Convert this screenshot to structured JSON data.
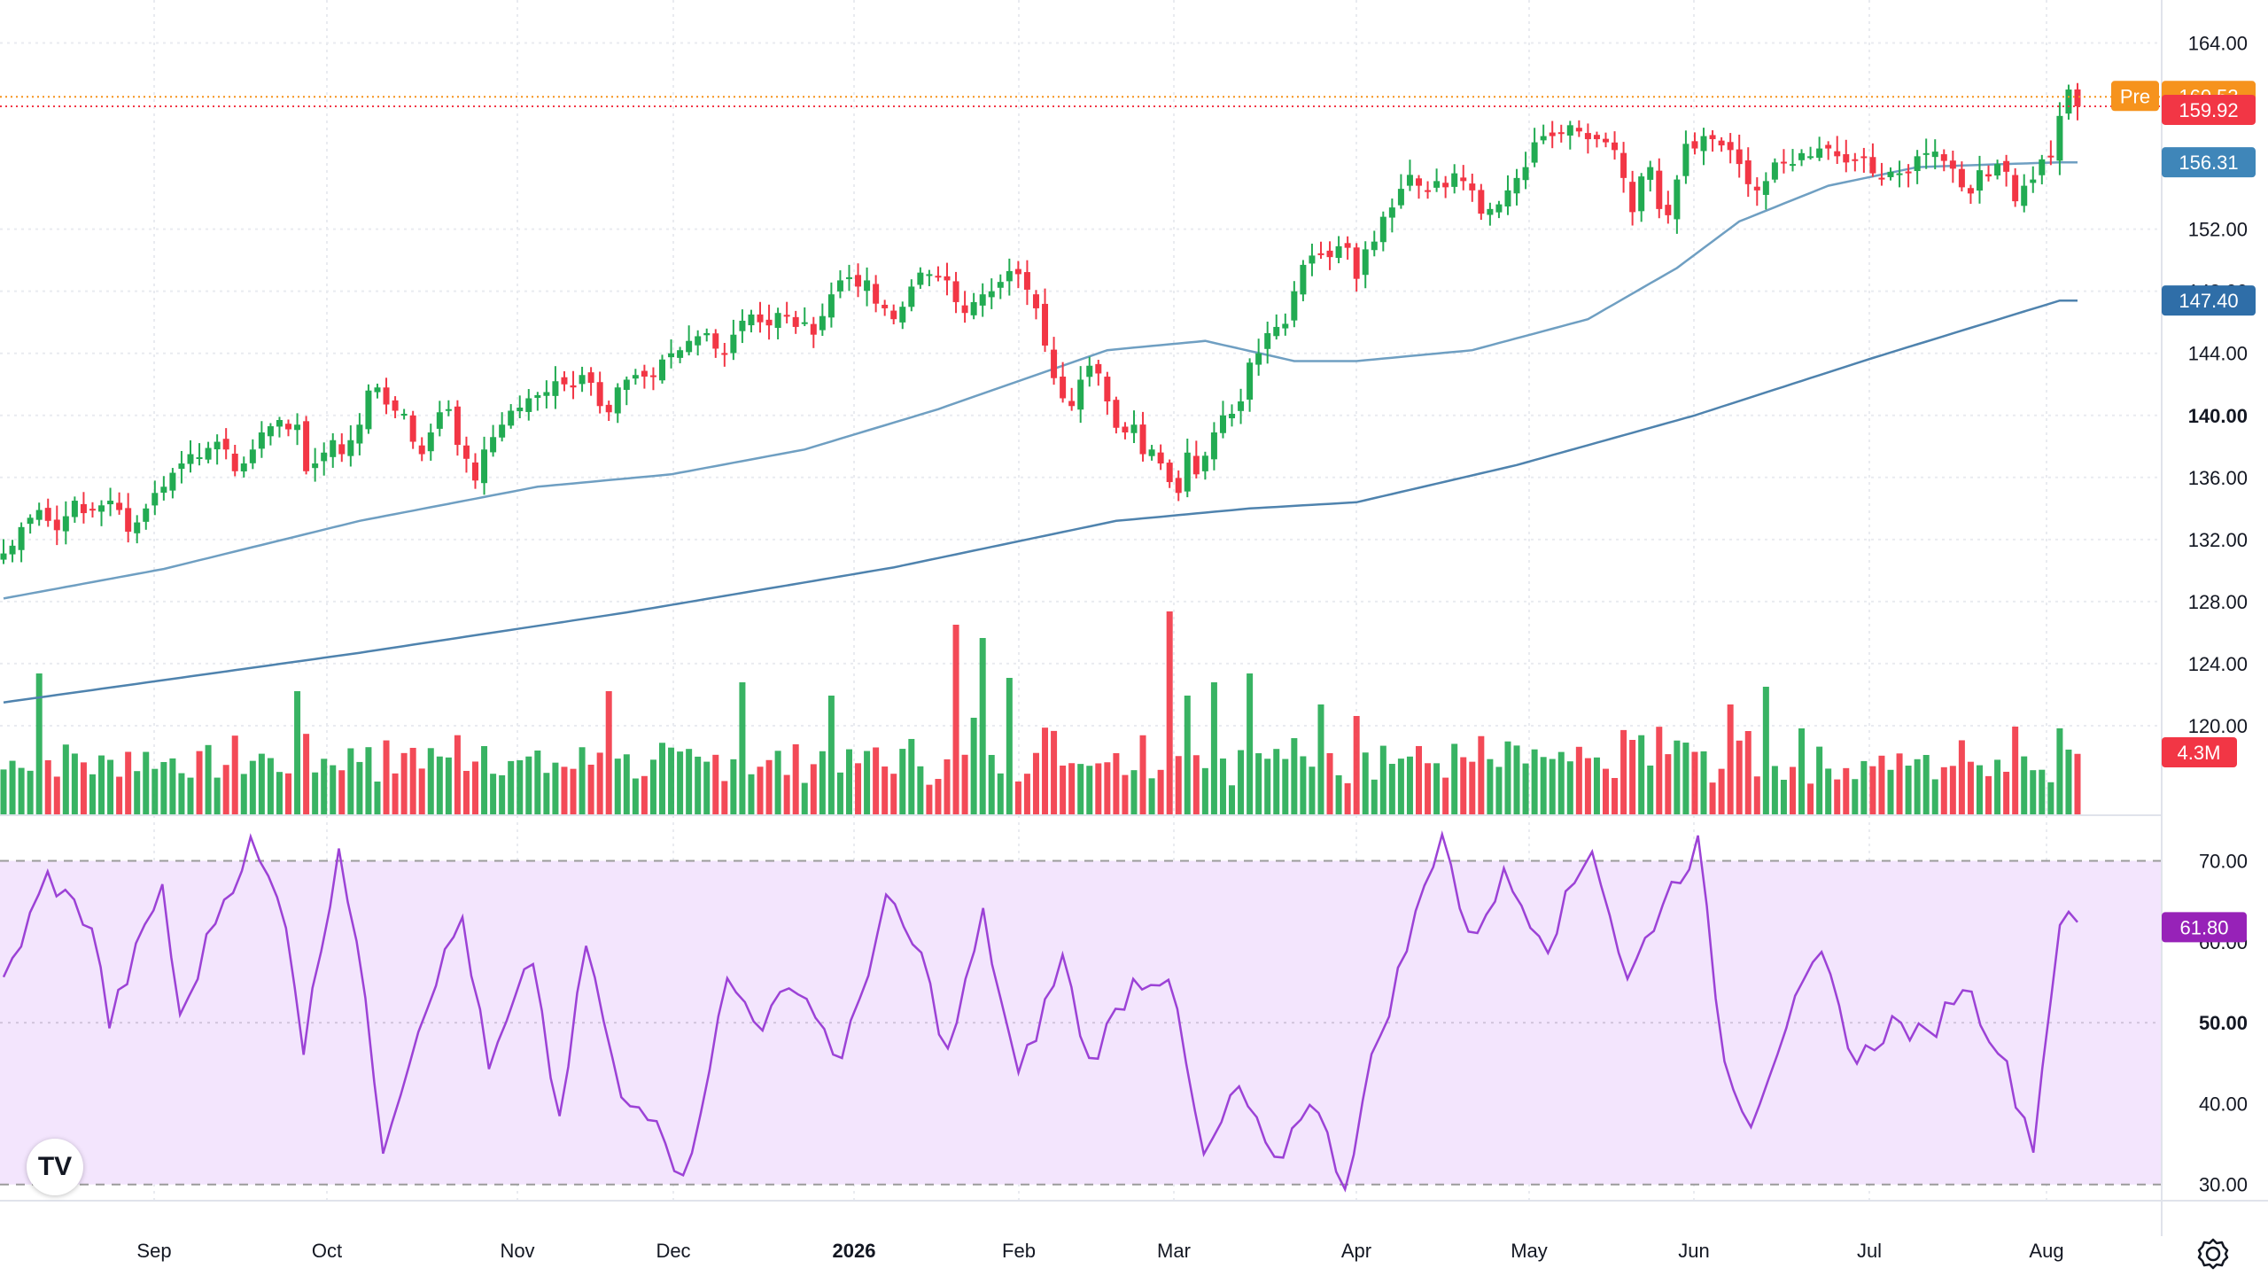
{
  "colors": {
    "up": "#22ab52",
    "down": "#f23645",
    "ma50": "#6f9fc2",
    "ma200": "#4f83ae",
    "rsi_line": "#9c42d6",
    "rsi_fill": "#f3e5fd",
    "pre_badge": "#f6931d",
    "last_badge": "#f23645",
    "ma50_badge": "#3f86b9",
    "ma200_badge": "#2f6ea8",
    "rsi_badge": "#9722b8"
  },
  "price_axis": {
    "ticks": [
      "164.00",
      "152.00",
      "148.00",
      "144.00",
      "140.00",
      "136.00",
      "132.00",
      "128.00",
      "124.00",
      "120.00"
    ],
    "range": [
      114.8,
      166.2
    ]
  },
  "badges": {
    "pre_label": "Pre",
    "pre_value": "160.53",
    "last_value": "159.92",
    "ma50_value": "156.31",
    "ma200_value": "147.40",
    "volume_value": "4.3M",
    "rsi_value": "61.80"
  },
  "rsi_axis": {
    "ticks": [
      "70.00",
      "60.00",
      "50.00",
      "40.00",
      "30.00"
    ],
    "range": [
      28,
      74
    ],
    "bands": [
      30,
      70
    ]
  },
  "time_axis": [
    "Sep",
    "Oct",
    "Nov",
    "Dec",
    "2026",
    "Feb",
    "Mar",
    "Apr",
    "May",
    "Jun",
    "Jul",
    "Aug"
  ],
  "logo_text": "TV",
  "icons": {
    "settings": "gear-icon",
    "logo": "tradingview-logo-icon"
  },
  "chart_data": {
    "type": "candlestick",
    "title": "",
    "last_close": 159.92,
    "premarket": 160.53,
    "ma50_last": 156.31,
    "ma200_last": 147.4,
    "volume_last": "4.3M",
    "rsi_last": 61.8,
    "x_ticks": [
      "Sep",
      "Oct",
      "Nov",
      "Dec",
      "2026",
      "Feb",
      "Mar",
      "Apr",
      "May",
      "Jun",
      "Jul",
      "Aug"
    ],
    "closes": [
      131.1,
      131.6,
      132.8,
      133.4,
      133.9,
      133.2,
      132.6,
      133.5,
      134.5,
      133.7,
      133.9,
      134.2,
      134.5,
      133.9,
      132.5,
      133.1,
      134.0,
      135.0,
      135.4,
      136.3,
      136.9,
      137.5,
      137.3,
      137.9,
      138.3,
      137.8,
      136.4,
      136.9,
      137.8,
      138.9,
      139.3,
      139.7,
      139.1,
      139.4,
      136.4,
      136.9,
      137.6,
      138.4,
      137.5,
      138.4,
      139.4,
      141.6,
      141.8,
      140.7,
      140.3,
      140.1,
      138.3,
      137.5,
      138.9,
      140.2,
      140.4,
      138.1,
      137.2,
      135.8,
      137.8,
      138.6,
      139.4,
      140.3,
      140.5,
      141.1,
      141.3,
      141.5,
      142.2,
      142.0,
      141.8,
      142.6,
      142.1,
      140.6,
      140.2,
      141.8,
      142.3,
      142.6,
      142.5,
      142.5,
      143.6,
      144.0,
      144.2,
      144.8,
      145.1,
      145.3,
      144.3,
      143.9,
      145.2,
      146.1,
      146.5,
      146.0,
      145.8,
      146.6,
      146.4,
      145.7,
      146.0,
      145.2,
      146.4,
      147.8,
      148.7,
      148.9,
      148.3,
      148.7,
      147.2,
      146.9,
      146.2,
      147.0,
      148.3,
      149.2,
      149.1,
      148.9,
      148.7,
      147.3,
      146.6,
      147.3,
      147.8,
      148.0,
      148.6,
      149.3,
      149.1,
      148.1,
      146.9,
      144.5,
      142.4,
      141.1,
      140.6,
      142.3,
      143.2,
      142.7,
      140.9,
      139.2,
      138.9,
      139.4,
      137.5,
      137.8,
      136.9,
      135.7,
      135.0,
      137.6,
      136.2,
      137.4,
      138.9,
      140.0,
      140.1,
      140.9,
      143.4,
      144.0,
      145.3,
      145.7,
      145.9,
      148.0,
      149.7,
      150.3,
      150.4,
      150.2,
      150.9,
      150.8,
      148.8,
      150.7,
      151.2,
      152.8,
      153.4,
      154.6,
      155.5,
      154.8,
      154.4,
      155.1,
      154.7,
      155.6,
      155.1,
      154.5,
      153.0,
      153.3,
      153.6,
      154.5,
      155.3,
      156.0,
      157.6,
      158.0,
      158.0,
      158.2,
      158.7,
      158.3,
      157.8,
      157.8,
      157.6,
      157.1,
      155.3,
      153.1,
      155.4,
      156.0,
      153.3,
      152.9,
      155.2,
      157.5,
      157.2,
      158.0,
      157.8,
      157.4,
      157.1,
      156.2,
      154.9,
      154.5,
      155.1,
      156.3,
      156.3,
      156.2,
      156.9,
      156.7,
      157.2,
      157.2,
      156.7,
      156.3,
      156.4,
      156.6,
      155.6,
      155.2,
      155.7,
      155.6,
      155.6,
      156.7,
      156.9,
      157.0,
      156.4,
      155.9,
      154.7,
      154.3,
      155.8,
      155.4,
      156.2,
      155.7,
      153.8,
      154.8,
      155.2,
      156.5,
      156.7,
      159.3,
      161.0,
      159.92
    ],
    "ma50": {
      "name": "",
      "anchors": [
        [
          0,
          128.2
        ],
        [
          18,
          130.1
        ],
        [
          40,
          133.2
        ],
        [
          60,
          135.4
        ],
        [
          75,
          136.2
        ],
        [
          90,
          137.8
        ],
        [
          105,
          140.4
        ],
        [
          116,
          142.6
        ],
        [
          124,
          144.2
        ],
        [
          135,
          144.8
        ],
        [
          145,
          143.5
        ],
        [
          152,
          143.5
        ],
        [
          165,
          144.2
        ],
        [
          178,
          146.2
        ],
        [
          188,
          149.5
        ],
        [
          195,
          152.5
        ],
        [
          205,
          154.8
        ],
        [
          215,
          156.0
        ],
        [
          225,
          156.2
        ],
        [
          231,
          156.31
        ]
      ]
    },
    "ma200": {
      "name": "",
      "anchors": [
        [
          0,
          121.5
        ],
        [
          40,
          124.7
        ],
        [
          70,
          127.3
        ],
        [
          100,
          130.2
        ],
        [
          125,
          133.2
        ],
        [
          140,
          134.0
        ],
        [
          152,
          134.4
        ],
        [
          170,
          136.8
        ],
        [
          190,
          140.0
        ],
        [
          210,
          143.7
        ],
        [
          231,
          147.4
        ]
      ]
    },
    "volume": {
      "unit": "M",
      "last": 4.3
    },
    "rsi": {
      "name": "",
      "range": [
        30,
        70
      ],
      "last": 61.8,
      "anchors": [
        [
          0,
          55
        ],
        [
          5,
          68
        ],
        [
          10,
          62
        ],
        [
          12,
          50
        ],
        [
          18,
          67
        ],
        [
          20,
          50
        ],
        [
          24,
          63
        ],
        [
          28,
          72
        ],
        [
          32,
          63
        ],
        [
          34,
          47
        ],
        [
          38,
          72
        ],
        [
          40,
          60
        ],
        [
          43,
          35
        ],
        [
          48,
          53
        ],
        [
          52,
          63
        ],
        [
          55,
          44
        ],
        [
          60,
          58
        ],
        [
          63,
          37
        ],
        [
          66,
          60
        ],
        [
          70,
          40
        ],
        [
          74,
          39
        ],
        [
          77,
          30
        ],
        [
          82,
          55
        ],
        [
          86,
          50
        ],
        [
          90,
          55
        ],
        [
          95,
          45
        ],
        [
          100,
          65
        ],
        [
          104,
          58
        ],
        [
          107,
          46
        ],
        [
          111,
          63
        ],
        [
          115,
          43
        ],
        [
          120,
          58
        ],
        [
          123,
          45
        ],
        [
          128,
          55
        ],
        [
          132,
          56
        ],
        [
          136,
          33
        ],
        [
          140,
          42
        ],
        [
          144,
          32
        ],
        [
          148,
          41
        ],
        [
          152,
          30
        ],
        [
          155,
          45
        ],
        [
          160,
          63
        ],
        [
          163,
          74
        ],
        [
          166,
          60
        ],
        [
          170,
          68
        ],
        [
          175,
          60
        ],
        [
          180,
          72
        ],
        [
          184,
          55
        ],
        [
          188,
          65
        ],
        [
          192,
          72
        ],
        [
          195,
          45
        ],
        [
          198,
          38
        ],
        [
          202,
          50
        ],
        [
          206,
          58
        ],
        [
          210,
          45
        ],
        [
          214,
          50
        ],
        [
          218,
          48
        ],
        [
          222,
          55
        ],
        [
          226,
          47
        ],
        [
          230,
          35
        ],
        [
          233,
          63
        ],
        [
          235,
          61.8
        ]
      ]
    }
  }
}
